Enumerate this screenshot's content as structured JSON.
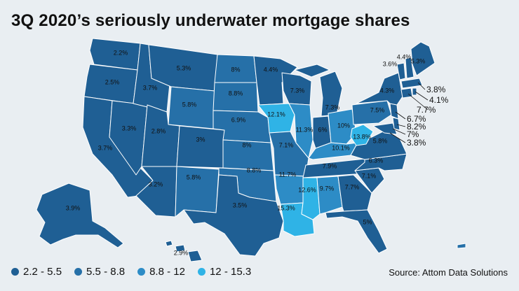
{
  "title": "3Q 2020’s seriously underwater mortgage shares",
  "source": "Source: Attom Data Solutions",
  "colors": {
    "c1": "#1f5f94",
    "c2": "#2670a8",
    "c3": "#2d8cc6",
    "c4": "#2fb3e6",
    "border": "#ffffff",
    "bg": "#e9eef2"
  },
  "legend": [
    {
      "label": "2.2 - 5.5",
      "color": "#1f5f94"
    },
    {
      "label": "5.5 - 8.8",
      "color": "#2670a8"
    },
    {
      "label": "8.8 - 12",
      "color": "#2d8cc6"
    },
    {
      "label": "12 - 15.3",
      "color": "#2fb3e6"
    }
  ],
  "states": {
    "WA": "2.2%",
    "OR": "2.5%",
    "CA": "3.7%",
    "ID": "3.7%",
    "NV": "3.3%",
    "MT": "5.3%",
    "WY": "5.8%",
    "UT": "2.8%",
    "AZ": "3.2%",
    "CO": "3%",
    "NM": "5.8%",
    "ND": "8%",
    "SD": "8.8%",
    "NE": "6.9%",
    "KS": "8%",
    "OK": "8.8%",
    "TX": "3.5%",
    "MN": "4.4%",
    "IA": "12.1%",
    "MO": "7.1%",
    "AR": "11.7%",
    "LA": "15.3%",
    "WI": "7.3%",
    "IL": "11.3%",
    "MI": "7.3%",
    "IN": "6%",
    "OH": "10%",
    "KY": "10.1%",
    "TN": "7.9%",
    "MS": "12.6%",
    "AL": "9.7%",
    "GA": "7.7%",
    "FL": "5%",
    "SC": "7.1%",
    "NC": "6.3%",
    "VA": "5.8%",
    "WV": "13.8%",
    "PA": "7.5%",
    "NY": "4.3%",
    "VT": "3.6%",
    "NH": "4.4%",
    "ME": "5.3%",
    "MA": "3.8%",
    "RI": "4.1%",
    "CT": "7.7%",
    "NJ": "6.7%",
    "DE": "8.2%",
    "MD": "7%",
    "DC": "3.8%",
    "AK": "3.9%",
    "HI": "2.9%"
  }
}
